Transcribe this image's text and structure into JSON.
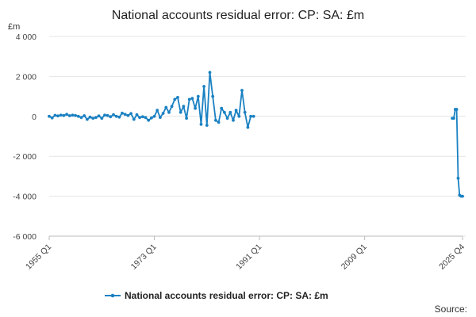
{
  "chart_data": {
    "type": "line",
    "title": "National accounts residual error: CP: SA: £m",
    "unit_label": "£m",
    "xlabel": "",
    "ylabel": "",
    "x_range": [
      "1955 Q1",
      "2025 Q4"
    ],
    "x_ticks": [
      "1955 Q1",
      "1973 Q1",
      "1991 Q1",
      "2009 Q1",
      "2025 Q4"
    ],
    "ylim": [
      -6000,
      4000
    ],
    "y_ticks": [
      4000,
      2000,
      0,
      -2000,
      -4000,
      -6000
    ],
    "y_tick_labels": [
      "4 000",
      "2 000",
      "0",
      "-2 000",
      "-4 000",
      "-6 000"
    ],
    "grid": true,
    "legend_position": "bottom",
    "series": [
      {
        "name": "National accounts residual error: CP: SA: £m",
        "color": "#1a81c2",
        "x": [
          "1955 Q1",
          "1955 Q3",
          "1956 Q1",
          "1956 Q3",
          "1957 Q1",
          "1957 Q3",
          "1958 Q1",
          "1958 Q3",
          "1959 Q1",
          "1959 Q3",
          "1960 Q1",
          "1960 Q3",
          "1961 Q1",
          "1961 Q3",
          "1962 Q1",
          "1962 Q3",
          "1963 Q1",
          "1963 Q3",
          "1964 Q1",
          "1964 Q3",
          "1965 Q1",
          "1965 Q3",
          "1966 Q1",
          "1966 Q3",
          "1967 Q1",
          "1967 Q3",
          "1968 Q1",
          "1968 Q3",
          "1969 Q1",
          "1969 Q3",
          "1970 Q1",
          "1970 Q3",
          "1971 Q1",
          "1971 Q3",
          "1972 Q1",
          "1972 Q3",
          "1973 Q1",
          "1973 Q3",
          "1974 Q1",
          "1974 Q3",
          "1975 Q1",
          "1975 Q3",
          "1976 Q1",
          "1976 Q3",
          "1977 Q1",
          "1977 Q3",
          "1978 Q1",
          "1978 Q3",
          "1979 Q1",
          "1979 Q3",
          "1980 Q1",
          "1980 Q3",
          "1981 Q1",
          "1981 Q3",
          "1982 Q1",
          "1982 Q3",
          "1983 Q1",
          "1983 Q3",
          "1984 Q1",
          "1984 Q3",
          "1985 Q1",
          "1985 Q3",
          "1986 Q1",
          "1986 Q3",
          "1987 Q1",
          "1987 Q3",
          "1988 Q1",
          "1988 Q3",
          "1989 Q1",
          "1989 Q3",
          "1990 Q1",
          "2024 Q1",
          "2024 Q2",
          "2024 Q3",
          "2024 Q4",
          "2025 Q1",
          "2025 Q2",
          "2025 Q3",
          "2025 Q4"
        ],
        "values": [
          0,
          -80,
          50,
          20,
          60,
          40,
          100,
          30,
          60,
          40,
          0,
          -60,
          30,
          -150,
          -40,
          -100,
          -60,
          20,
          -100,
          60,
          40,
          -20,
          80,
          0,
          -40,
          160,
          100,
          40,
          140,
          -150,
          80,
          -60,
          -20,
          -60,
          -200,
          -80,
          0,
          300,
          -50,
          150,
          450,
          200,
          500,
          850,
          950,
          200,
          500,
          -100,
          850,
          900,
          400,
          1000,
          -400,
          1500,
          -450,
          2200,
          1000,
          -200,
          -300,
          400,
          200,
          -100,
          200,
          -200,
          300,
          0,
          1300,
          200,
          -550,
          0,
          0,
          -100,
          -100,
          350,
          350,
          -3100,
          -3950,
          -4000,
          -4000
        ]
      }
    ]
  },
  "legend": {
    "label": "National accounts residual error: CP: SA: £m"
  },
  "footer": {
    "source_label": "Source:"
  }
}
